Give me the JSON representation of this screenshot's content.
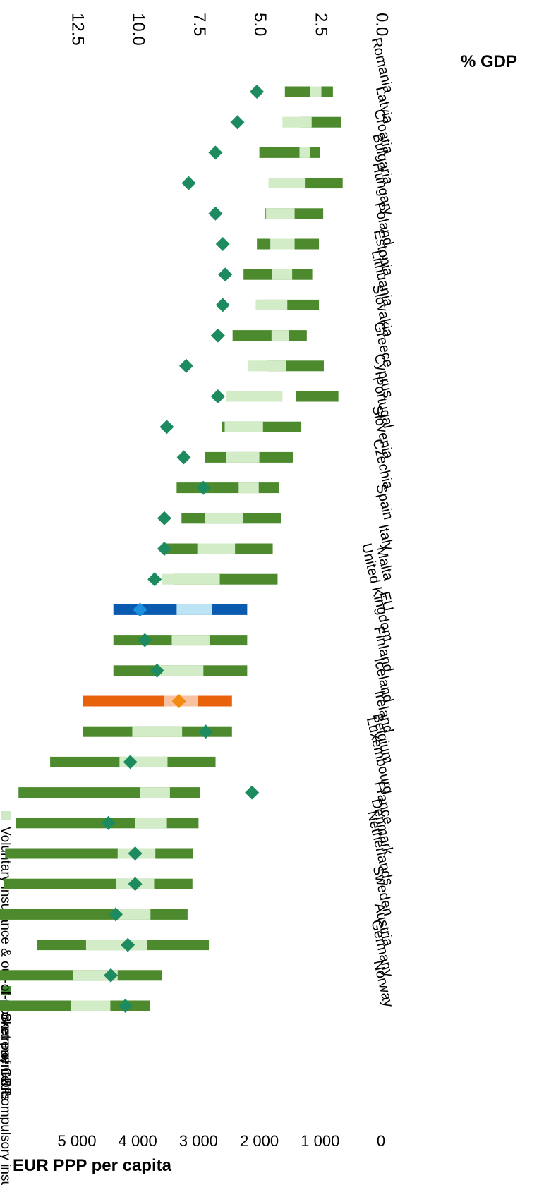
{
  "chart_data": {
    "type": "bar",
    "stacked": true,
    "orientation": "rotated 90 degrees clockwise (categories read bottom-to-top of the page, values grow leftward)",
    "left_axis_title": "EUR PPP per capita",
    "right_axis_title": "% GDP",
    "left_axis": {
      "range": [
        0,
        5000
      ],
      "ticks": [
        "0",
        "1 000",
        "2 000",
        "3 000",
        "4 000",
        "5 000"
      ]
    },
    "right_axis": {
      "range": [
        0,
        12.5
      ],
      "ticks": [
        "0.0",
        "2.5",
        "5.0",
        "7.5",
        "10.0",
        "12.5"
      ]
    },
    "grid": false,
    "legend_position": "top",
    "categories": [
      "Norway",
      "Germany",
      "Austria",
      "Sweden",
      "Netherlands",
      "Denmark",
      "France",
      "Luxembourg",
      "Belgium",
      "Ireland",
      "Iceland",
      "Finland",
      "United Kingdom",
      "EU",
      "Malta",
      "Italy",
      "Spain",
      "Czechia",
      "Slovenia",
      "Portugal",
      "Cyprus",
      "Greece",
      "Slovakia",
      "Lithuania",
      "Estonia",
      "Poland",
      "Hungary",
      "Bulgaria",
      "Croatia",
      "Latvia",
      "Romania"
    ],
    "series": [
      {
        "name": "Government & compulsory insurance",
        "kind": "bar",
        "axis": "left",
        "values": [
          3800,
          3600,
          2830,
          3180,
          3100,
          3090,
          3000,
          2980,
          2720,
          2450,
          2450,
          2200,
          2200,
          2200,
          1700,
          1780,
          1640,
          1680,
          1450,
          1310,
          700,
          940,
          1220,
          1020,
          1130,
          1020,
          950,
          630,
          1000,
          660,
          790
        ]
      },
      {
        "name": "Voluntary  insurance & out-of-pocket payments",
        "kind": "bar",
        "axis": "left",
        "values": [
          650,
          730,
          1010,
          610,
          630,
          620,
          520,
          490,
          790,
          820,
          560,
          720,
          620,
          580,
          950,
          620,
          630,
          330,
          550,
          630,
          920,
          620,
          290,
          520,
          330,
          400,
          470,
          610,
          170,
          480,
          190
        ]
      },
      {
        "name": "Share of GDP",
        "kind": "scatter",
        "axis": "right",
        "values": [
          10.5,
          11.1,
          10.4,
          10.9,
          10.1,
          10.1,
          11.2,
          5.3,
          10.3,
          7.2,
          8.3,
          9.2,
          9.7,
          9.9,
          9.3,
          8.9,
          8.9,
          7.3,
          8.1,
          8.8,
          6.7,
          8.0,
          6.7,
          6.5,
          6.4,
          6.5,
          6.8,
          7.9,
          6.8,
          5.9,
          5.1
        ]
      }
    ],
    "highlights": {
      "EU": "blue",
      "Iceland": "orange"
    },
    "colors": {
      "gov": "#4d8a2e",
      "vol": "#d1ecc7",
      "diamond": "#1d8a60",
      "eu_gov": "#0a5bb0",
      "eu_vol": "#bde4f5",
      "eu_diamond": "#1e8fde",
      "is_gov": "#e8620c",
      "is_vol": "#f8c2a2",
      "is_diamond": "#f08a12",
      "legend_gov": "#3f8a30",
      "legend_vol": "#cfe9c6",
      "legend_diamond": "#1d9a74",
      "text": "#000000"
    }
  }
}
